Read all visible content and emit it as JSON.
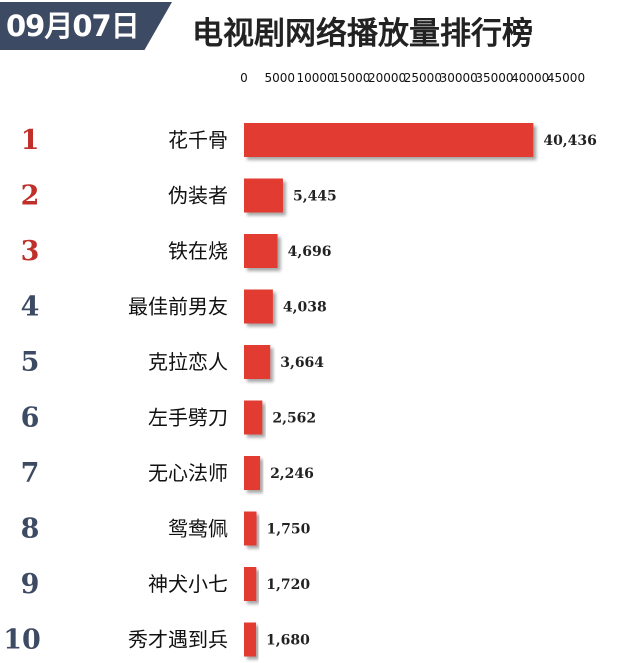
{
  "header": {
    "date": "09月07日",
    "title": "电视剧网络播放量排行榜"
  },
  "colors": {
    "bar": "#e23b32",
    "rank_top": "#c0302a",
    "rank_rest": "#3d4a63",
    "badge": "#3d4a63"
  },
  "chart_data": {
    "type": "bar",
    "orientation": "horizontal",
    "title": "电视剧网络播放量排行榜",
    "ranks": [
      "1",
      "2",
      "3",
      "4",
      "5",
      "6",
      "7",
      "8",
      "9",
      "10"
    ],
    "categories": [
      "花千骨",
      "伪装者",
      "铁在烧",
      "最佳前男友",
      "克拉恋人",
      "左手劈刀",
      "无心法师",
      "鸳鸯佩",
      "神犬小七",
      "秀才遇到兵"
    ],
    "values": [
      40436,
      5445,
      4696,
      4038,
      3664,
      2562,
      2246,
      1750,
      1720,
      1680
    ],
    "value_labels": [
      "40,436",
      "5,445",
      "4,696",
      "4,038",
      "3,664",
      "2,562",
      "2,246",
      "1,750",
      "1,720",
      "1,680"
    ],
    "xlim": [
      0,
      45000
    ],
    "xticks": [
      "0",
      "5000",
      "10000",
      "15000",
      "20000",
      "25000",
      "30000",
      "35000",
      "40000",
      "45000"
    ],
    "xtick_values": [
      0,
      5000,
      10000,
      15000,
      20000,
      25000,
      30000,
      35000,
      40000,
      45000
    ],
    "axis_position": "top",
    "grid": false,
    "legend": "none"
  }
}
